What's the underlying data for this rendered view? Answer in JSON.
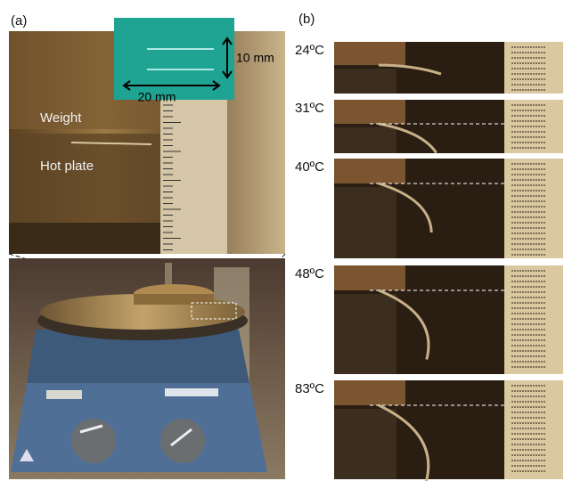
{
  "panel_a": {
    "label": "(a)",
    "annotations": [
      "Weight",
      "Hot plate"
    ],
    "inset": {
      "height": "10 mm",
      "width": "20 mm"
    }
  },
  "panel_b": {
    "label": "(b)",
    "frames": [
      {
        "temperature": "24ºC"
      },
      {
        "temperature": "31ºC"
      },
      {
        "temperature": "40ºC"
      },
      {
        "temperature": "48ºC"
      },
      {
        "temperature": "83ºC"
      }
    ]
  }
}
